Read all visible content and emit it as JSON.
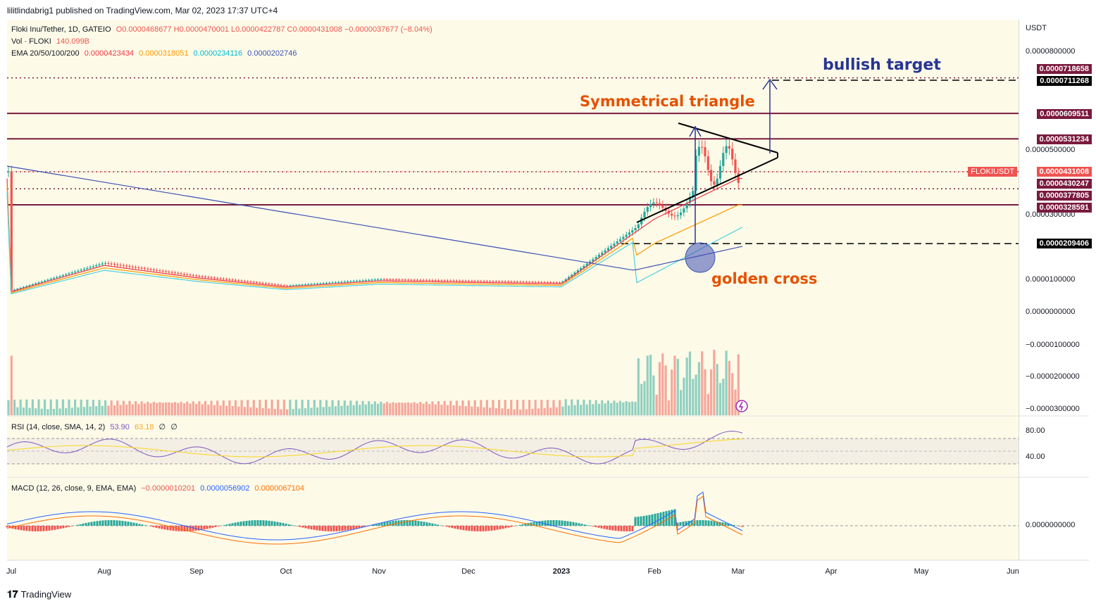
{
  "publisher": "lilitlindabrig1 published on TradingView.com, Mar 02, 2023 17:37 UTC+4",
  "legend": {
    "symbol": "Floki Inu/Tether, 1D, GATEIO",
    "ohlc": "O0.0000468677  H0.0000470001  L0.0000422787  C0.0000431008  −0.0000037677 (−8.04%)",
    "vol": "Vol · FLOKI",
    "vol_value": "140.099B",
    "ema_label": "EMA 20/50/100/200",
    "ema_values": [
      "0.0000423434",
      "0.0000318051",
      "0.0000234116",
      "0.0000202746"
    ],
    "ema_colors": [
      "#f23645",
      "#ff9800",
      "#4dd0e1",
      "#3f51b5"
    ]
  },
  "axis": {
    "currency": "USDT",
    "price_ticks": [
      "0.0000800000",
      "0.0000500000",
      "0.0000300000",
      "0.0000100000",
      "0.0000000000",
      "−0.0000100000",
      "−0.0000200000",
      "−0.0000300000"
    ],
    "price_tags": [
      "0.0000718658",
      "0.0000711268",
      "0.0000609511",
      "0.0000531234",
      "0.0000430247",
      "0.0000377805",
      "0.0000328591",
      "0.0000209406"
    ],
    "current_label": "FLOKIUSDT",
    "current_price": "0.0000431008",
    "rsi_ticks": [
      "80.00",
      "40.00"
    ],
    "macd_tick": "0.0000000000",
    "months": [
      "Jul",
      "Aug",
      "Sep",
      "Oct",
      "Nov",
      "Dec",
      "2023",
      "Feb",
      "Mar",
      "Apr",
      "May",
      "Jun"
    ]
  },
  "rsi": {
    "label": "RSI (14, close, SMA, 14, 2)",
    "v1": "53.90",
    "v2": "63.18",
    "v3": "∅",
    "v4": "∅"
  },
  "macd": {
    "label": "MACD (12, 26, close, 9, EMA, EMA)",
    "v1": "−0.0000010201",
    "v2": "0.0000056902",
    "v3": "0.0000067104"
  },
  "annotations": {
    "bullish_target": "bullish target",
    "symmetrical_triangle": "Symmetrical triangle",
    "golden_cross": "golden cross"
  },
  "footer": {
    "brand": "TradingView"
  },
  "colors": {
    "up": "#26a69a",
    "down": "#ef5350",
    "level": "#7a1a3e",
    "annotation_orange": "#e65100",
    "annotation_blue": "#283593"
  },
  "chart_data": {
    "type": "candlestick",
    "symbol": "FLOKIUSDT",
    "timeframe": "1D",
    "x_range": [
      "Jul 2022",
      "Jun 2023"
    ],
    "levels": [
      7.18658e-05,
      7.11268e-05,
      6.09511e-05,
      5.31234e-05,
      4.30247e-05,
      3.77805e-05,
      3.28591e-05,
      2.09406e-05
    ],
    "close_series": [
      {
        "month": "Jul",
        "close": 6.5e-06
      },
      {
        "month": "Aug",
        "close": 1.5e-05
      },
      {
        "month": "Sep",
        "close": 1.1e-05
      },
      {
        "month": "Oct",
        "close": 8e-06
      },
      {
        "month": "Nov",
        "close": 1e-05
      },
      {
        "month": "Dec",
        "close": 9.5e-06
      },
      {
        "month": "2023",
        "close": 9e-06
      },
      {
        "month": "Feb",
        "close": 3e-05
      },
      {
        "month": "Mar",
        "close": 4.31008e-05
      }
    ]
  }
}
